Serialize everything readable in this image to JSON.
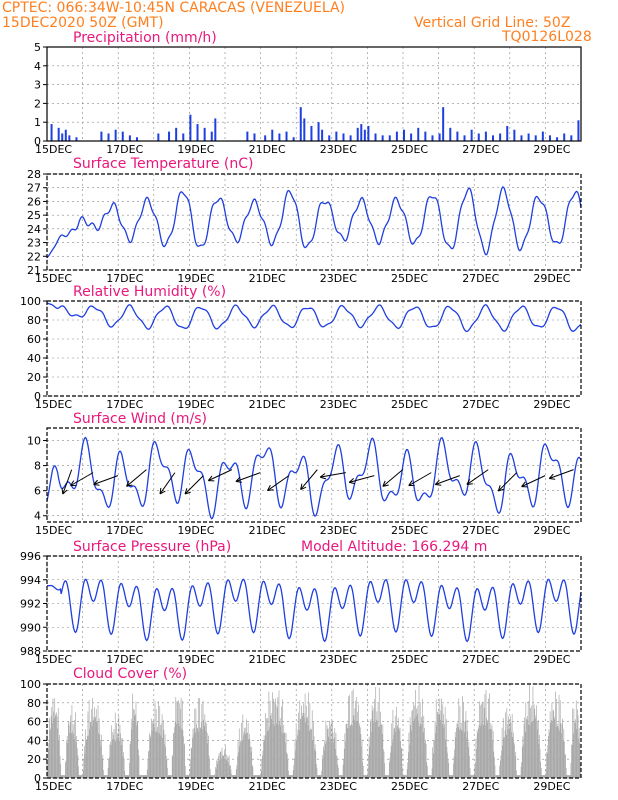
{
  "header": {
    "left_line1": "CPTEC:   066:34W-10:45N   CARACAS (VENEZUELA)",
    "left_line2": "15DEC2020 50Z (GMT)",
    "right_line1": "Vertical Grid Line: 50Z",
    "right_line2": "TQ0126L028"
  },
  "colors": {
    "header": "#ff7f1f",
    "panel_title": "#e8187c",
    "series": "#1f3fe0",
    "bars": "#1f3fe0",
    "cloud": "#a9a9a9"
  },
  "x_tick_labels": [
    "15DEC",
    "17DEC",
    "19DEC",
    "21DEC",
    "23DEC",
    "25DEC",
    "27DEC",
    "29DEC"
  ],
  "x_tick_positions_days": [
    0,
    2,
    4,
    6,
    8,
    10,
    12,
    14
  ],
  "x_range_days": [
    0,
    15
  ],
  "chart_data": [
    {
      "panel": "precip",
      "type": "bar",
      "title": "Precipitation (mm/h)",
      "ylim": [
        0,
        5
      ],
      "yticks": [
        0,
        1,
        2,
        3,
        4,
        5
      ],
      "grid": true,
      "bars": [
        [
          0.1,
          0.9
        ],
        [
          0.3,
          0.7
        ],
        [
          0.4,
          0.4
        ],
        [
          0.5,
          0.6
        ],
        [
          0.6,
          0.3
        ],
        [
          0.8,
          0.2
        ],
        [
          1.5,
          0.5
        ],
        [
          1.7,
          0.4
        ],
        [
          1.9,
          0.6
        ],
        [
          2.1,
          0.5
        ],
        [
          2.3,
          0.3
        ],
        [
          2.5,
          0.2
        ],
        [
          3.1,
          0.4
        ],
        [
          3.4,
          0.5
        ],
        [
          3.6,
          0.7
        ],
        [
          3.8,
          0.4
        ],
        [
          4.0,
          1.4
        ],
        [
          4.2,
          0.9
        ],
        [
          4.4,
          0.7
        ],
        [
          4.6,
          0.5
        ],
        [
          4.7,
          1.2
        ],
        [
          5.6,
          0.5
        ],
        [
          5.8,
          0.4
        ],
        [
          6.1,
          0.3
        ],
        [
          6.3,
          0.6
        ],
        [
          6.5,
          0.4
        ],
        [
          6.7,
          0.5
        ],
        [
          6.9,
          0.2
        ],
        [
          7.1,
          1.8
        ],
        [
          7.2,
          1.2
        ],
        [
          7.4,
          0.8
        ],
        [
          7.6,
          1.0
        ],
        [
          7.7,
          0.6
        ],
        [
          7.9,
          0.3
        ],
        [
          8.1,
          0.5
        ],
        [
          8.3,
          0.4
        ],
        [
          8.5,
          0.3
        ],
        [
          8.7,
          0.7
        ],
        [
          8.8,
          0.9
        ],
        [
          8.9,
          0.6
        ],
        [
          9.0,
          0.8
        ],
        [
          9.2,
          0.4
        ],
        [
          9.4,
          0.3
        ],
        [
          9.6,
          0.3
        ],
        [
          9.8,
          0.5
        ],
        [
          10.0,
          0.6
        ],
        [
          10.2,
          0.4
        ],
        [
          10.4,
          0.7
        ],
        [
          10.6,
          0.5
        ],
        [
          10.8,
          0.3
        ],
        [
          11.0,
          0.4
        ],
        [
          11.1,
          1.8
        ],
        [
          11.3,
          0.7
        ],
        [
          11.5,
          0.5
        ],
        [
          11.7,
          0.3
        ],
        [
          11.9,
          0.6
        ],
        [
          12.1,
          0.4
        ],
        [
          12.3,
          0.5
        ],
        [
          12.5,
          0.3
        ],
        [
          12.7,
          0.4
        ],
        [
          12.9,
          0.8
        ],
        [
          13.1,
          0.6
        ],
        [
          13.3,
          0.3
        ],
        [
          13.5,
          0.4
        ],
        [
          13.7,
          0.3
        ],
        [
          13.9,
          0.5
        ],
        [
          14.1,
          0.3
        ],
        [
          14.3,
          0.2
        ],
        [
          14.5,
          0.4
        ],
        [
          14.7,
          0.3
        ],
        [
          14.9,
          1.1
        ]
      ]
    },
    {
      "panel": "temp",
      "type": "line",
      "title": "Surface Temperature (nC)",
      "ylim": [
        21,
        28
      ],
      "yticks": [
        21,
        22,
        23,
        24,
        25,
        26,
        27,
        28
      ],
      "grid": true,
      "diurnal": {
        "base": 25.0,
        "amp": 1.2,
        "phase_day": 0.82,
        "start_y": 21.9,
        "ramp_days": 0.9
      },
      "x": [
        0,
        1,
        2,
        3,
        4,
        5,
        6,
        7,
        8,
        9,
        10,
        11,
        12,
        13,
        14,
        15
      ],
      "peaks": [
        23.5,
        25.1,
        26.3,
        26.5,
        27.3,
        26.5,
        26.3,
        27.3,
        26.3,
        26.5,
        26.5,
        27.0,
        27.3,
        27.2,
        26.6,
        27.2
      ]
    },
    {
      "panel": "rh",
      "type": "line",
      "title": "Relative Humidity (%)",
      "ylim": [
        0,
        100
      ],
      "yticks": [
        0,
        20,
        40,
        60,
        80,
        100
      ],
      "grid": true,
      "diurnal": {
        "base": 84,
        "amp": 10,
        "phase_day": 0.82,
        "start_y": 98
      },
      "x": [
        0,
        1,
        2,
        3,
        4,
        5,
        6,
        7,
        8,
        9,
        10,
        11,
        12,
        13,
        14,
        15
      ],
      "troughs": [
        90,
        82,
        72,
        72,
        70,
        72,
        74,
        72,
        73,
        74,
        72,
        71,
        69,
        70,
        72,
        68
      ]
    },
    {
      "panel": "wind",
      "type": "line",
      "title": "Surface Wind (m/s)",
      "ylim": [
        3.5,
        11
      ],
      "yticks": [
        4,
        6,
        8,
        10
      ],
      "grid": true,
      "diurnal": {
        "base": 7.1,
        "amp": 1.9,
        "phase_day": 0.1,
        "start_y": 5.2
      },
      "x": [
        0,
        1,
        2,
        3,
        4,
        5,
        6,
        7,
        8,
        9,
        10,
        11,
        12,
        13,
        14,
        15
      ],
      "arrow_days": [
        0.3,
        0.9,
        1.6,
        2.4,
        3.2,
        4.0,
        4.8,
        5.6,
        6.4,
        7.2,
        8.0,
        8.8,
        9.6,
        10.4,
        11.2,
        12.0,
        12.8,
        13.6,
        14.4
      ],
      "arrow_dirs": [
        200,
        240,
        250,
        230,
        215,
        225,
        245,
        250,
        235,
        220,
        260,
        255,
        230,
        240,
        250,
        235,
        225,
        245,
        250
      ]
    },
    {
      "panel": "pres",
      "type": "line",
      "title": "Surface Pressure (hPa)",
      "subtitle": "Model Altitude: 166.294 m",
      "ylim": [
        988,
        996
      ],
      "yticks": [
        988,
        990,
        992,
        994,
        996
      ],
      "grid": true,
      "semidiurnal": {
        "base": 992.0,
        "amp1": 1.5,
        "amp2": 1.3,
        "start_y": 993.5
      }
    },
    {
      "panel": "cloud",
      "type": "area",
      "title": "Cloud Cover (%)",
      "ylim": [
        0,
        100
      ],
      "yticks": [
        0,
        20,
        40,
        60,
        80,
        100
      ],
      "grid": true,
      "bursts": [
        [
          0.0,
          0.4,
          95
        ],
        [
          0.5,
          0.9,
          80
        ],
        [
          1.0,
          1.6,
          90
        ],
        [
          1.7,
          2.2,
          70
        ],
        [
          2.3,
          2.6,
          95
        ],
        [
          2.8,
          3.4,
          85
        ],
        [
          3.5,
          3.9,
          100
        ],
        [
          4.0,
          4.6,
          90
        ],
        [
          4.7,
          5.2,
          35
        ],
        [
          5.3,
          5.8,
          70
        ],
        [
          6.0,
          6.8,
          100
        ],
        [
          6.9,
          7.6,
          95
        ],
        [
          7.7,
          8.2,
          70
        ],
        [
          8.3,
          8.9,
          100
        ],
        [
          9.0,
          9.5,
          100
        ],
        [
          9.6,
          10.0,
          80
        ],
        [
          10.1,
          10.7,
          100
        ],
        [
          10.8,
          11.3,
          95
        ],
        [
          11.4,
          11.9,
          90
        ],
        [
          12.0,
          12.6,
          100
        ],
        [
          12.7,
          13.2,
          80
        ],
        [
          13.3,
          13.9,
          100
        ],
        [
          14.0,
          14.6,
          95
        ],
        [
          14.7,
          15.0,
          90
        ]
      ]
    }
  ],
  "panel_titles": {
    "precip": "Precipitation (mm/h)",
    "temp": "Surface Temperature (nC)",
    "rh": "Relative Humidity (%)",
    "wind": "Surface Wind (m/s)",
    "pres": "Surface Pressure (hPa)",
    "pres_sub": "Model Altitude: 166.294 m",
    "cloud": "Cloud Cover (%)"
  }
}
